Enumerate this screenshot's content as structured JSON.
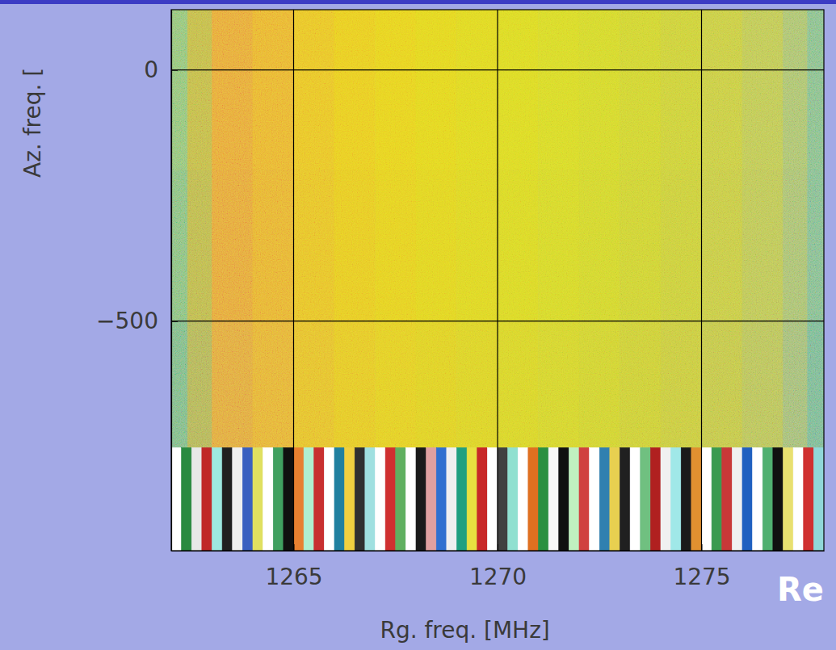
{
  "chart_data": {
    "type": "heatmap",
    "x_label": "Rg. freq. [MHz]",
    "y_label": "Az. freq. [",
    "annotations": [
      "Re"
    ],
    "xlim": [
      1262,
      1278
    ],
    "xticks": [
      1265,
      1270,
      1275
    ],
    "ylim": [
      -957,
      120
    ],
    "yticks": [
      0,
      {
        "value": -500,
        "label": "−500"
      }
    ],
    "grid": true,
    "cells": {
      "x_edges": [
        1262,
        1262.4,
        1263,
        1264,
        1265,
        1266,
        1267,
        1268,
        1269,
        1270,
        1271,
        1272,
        1273,
        1274,
        1275,
        1276,
        1277,
        1277.6,
        1278
      ],
      "y_edges": [
        120,
        -200,
        -500,
        -752
      ],
      "colors": [
        [
          "#8fc27a",
          "#c0b84c",
          "#e6a63c",
          "#e8b234",
          "#e8c22a",
          "#e8ca24",
          "#e6d022",
          "#e2d422",
          "#ded624",
          "#dad826",
          "#d6d82a",
          "#d2d62e",
          "#ced234",
          "#cace3c",
          "#c6ca46",
          "#bcc656",
          "#a8c070",
          "#84bc8c"
        ],
        [
          "#86be80",
          "#bab650",
          "#e4a43e",
          "#e6b036",
          "#e6c02c",
          "#e6c826",
          "#e4ce24",
          "#e0d224",
          "#dcd426",
          "#d8d628",
          "#d4d62c",
          "#d0d430",
          "#ccd036",
          "#c8cc3e",
          "#c4c848",
          "#bac458",
          "#a6be72",
          "#80ba90"
        ],
        [
          "#7cb888",
          "#b0b25a",
          "#e0a642",
          "#e4b03a",
          "#e4be30",
          "#e4c62a",
          "#e2cc28",
          "#dece28",
          "#dad02a",
          "#d6d22c",
          "#d2d230",
          "#ced034",
          "#cacc3a",
          "#c6c842",
          "#c0c44c",
          "#b6c05c",
          "#a0ba78",
          "#78b694"
        ]
      ]
    },
    "stripes": {
      "x_edges": [
        1262,
        1262.25,
        1262.5,
        1262.75,
        1263,
        1263.25,
        1263.5,
        1263.75,
        1264,
        1264.25,
        1264.5,
        1264.75,
        1265,
        1265.25,
        1265.5,
        1265.75,
        1266,
        1266.25,
        1266.5,
        1266.75,
        1267,
        1267.25,
        1267.5,
        1267.75,
        1268,
        1268.25,
        1268.5,
        1268.75,
        1269,
        1269.25,
        1269.5,
        1269.75,
        1270,
        1270.25,
        1270.5,
        1270.75,
        1271,
        1271.25,
        1271.5,
        1271.75,
        1272,
        1272.25,
        1272.5,
        1272.75,
        1273,
        1273.25,
        1273.5,
        1273.75,
        1274,
        1274.25,
        1274.5,
        1274.75,
        1275,
        1275.25,
        1275.5,
        1275.75,
        1276,
        1276.25,
        1276.5,
        1276.75,
        1277,
        1277.25,
        1277.5,
        1277.75,
        1278
      ],
      "y_edges": [
        -752,
        -957
      ],
      "colors": [
        [
          "#ffffff",
          "#2a8a40",
          "#e8e8e8",
          "#c02828",
          "#9ee8e0",
          "#202020",
          "#f0f0f0",
          "#3a60c0",
          "#e0e060",
          "#ffffff",
          "#40a060",
          "#101010",
          "#e88030",
          "#b0f0d0",
          "#c83030",
          "#ffffff",
          "#2080a0",
          "#f0d040",
          "#303030",
          "#a0e0e0",
          "#ffffff",
          "#d03030",
          "#60b060",
          "#ffffff",
          "#1a1a1a",
          "#e0a0a0",
          "#3070d0",
          "#f0f0f0",
          "#20a080",
          "#e8e040",
          "#c82828",
          "#ffffff",
          "#404040",
          "#90e0d0",
          "#ffffff",
          "#e07020",
          "#2a9040",
          "#f8f8f8",
          "#101010",
          "#c0f0c0",
          "#d04040",
          "#ffffff",
          "#3080b0",
          "#e8d050",
          "#202020",
          "#ffffff",
          "#70c080",
          "#b02020",
          "#f0f0f0",
          "#a0e8e8",
          "#1a1a1a",
          "#e09030",
          "#ffffff",
          "#3a9a50",
          "#c83838",
          "#f0f0f0",
          "#2060c0",
          "#ffffff",
          "#50b070",
          "#101010",
          "#e8e070",
          "#ffffff",
          "#d03030",
          "#90d8d8"
        ]
      ]
    }
  }
}
